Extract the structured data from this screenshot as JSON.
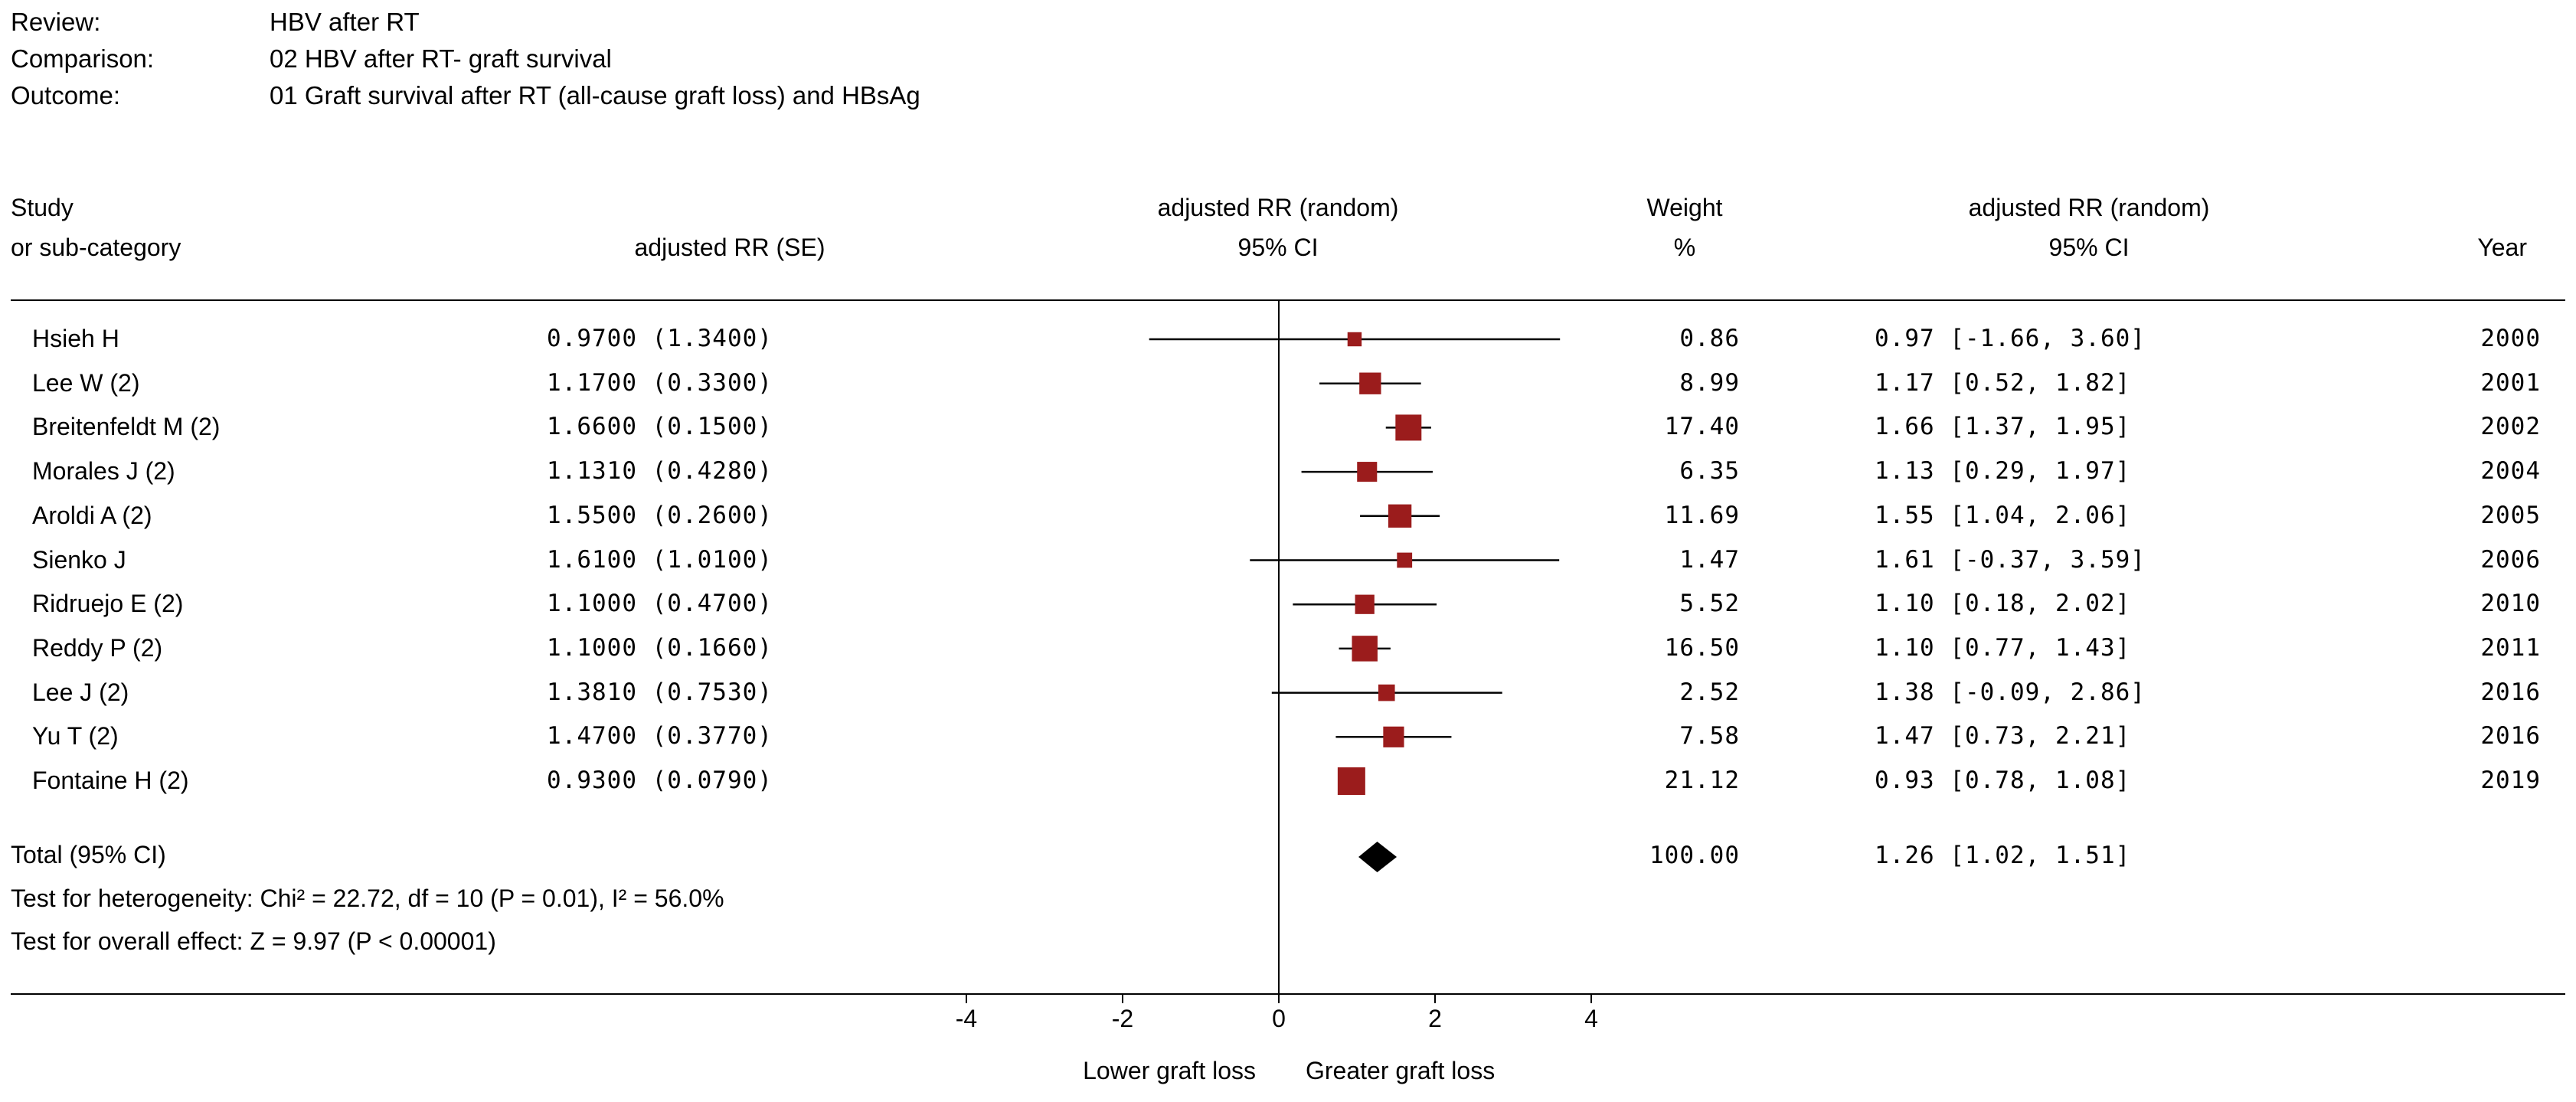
{
  "header": {
    "review_label": "Review:",
    "review_value": "HBV after RT",
    "comparison_label": "Comparison:",
    "comparison_value": "02 HBV after RT- graft survival",
    "outcome_label": "Outcome:",
    "outcome_value": "01 Graft survival after RT (all-cause graft loss) and HBsAg"
  },
  "columns": {
    "study_l1": "Study",
    "study_l2": "or sub-category",
    "rrse": "adjusted RR (SE)",
    "plot_l1": "adjusted RR (random)",
    "plot_l2": "95% CI",
    "weight_l1": "Weight",
    "weight_l2": "%",
    "ci_l1": "adjusted RR (random)",
    "ci_l2": "95% CI",
    "year": "Year"
  },
  "rows": [
    {
      "study": "Hsieh H",
      "rrse": "0.9700 (1.3400)",
      "weight": "0.86",
      "ci": "0.97 [-1.66, 3.60]",
      "year": "2000"
    },
    {
      "study": "Lee W (2)",
      "rrse": "1.1700 (0.3300)",
      "weight": "8.99",
      "ci": "1.17 [0.52, 1.82]",
      "year": "2001"
    },
    {
      "study": "Breitenfeldt M (2)",
      "rrse": "1.6600 (0.1500)",
      "weight": "17.40",
      "ci": "1.66 [1.37, 1.95]",
      "year": "2002"
    },
    {
      "study": "Morales J (2)",
      "rrse": "1.1310 (0.4280)",
      "weight": "6.35",
      "ci": "1.13 [0.29, 1.97]",
      "year": "2004"
    },
    {
      "study": "Aroldi A (2)",
      "rrse": "1.5500 (0.2600)",
      "weight": "11.69",
      "ci": "1.55 [1.04, 2.06]",
      "year": "2005"
    },
    {
      "study": "Sienko J",
      "rrse": "1.6100 (1.0100)",
      "weight": "1.47",
      "ci": "1.61 [-0.37, 3.59]",
      "year": "2006"
    },
    {
      "study": "Ridruejo E (2)",
      "rrse": "1.1000 (0.4700)",
      "weight": "5.52",
      "ci": "1.10 [0.18, 2.02]",
      "year": "2010"
    },
    {
      "study": "Reddy P (2)",
      "rrse": "1.1000 (0.1660)",
      "weight": "16.50",
      "ci": "1.10 [0.77, 1.43]",
      "year": "2011"
    },
    {
      "study": "Lee J (2)",
      "rrse": "1.3810 (0.7530)",
      "weight": "2.52",
      "ci": "1.38 [-0.09, 2.86]",
      "year": "2016"
    },
    {
      "study": "Yu T (2)",
      "rrse": "1.4700 (0.3770)",
      "weight": "7.58",
      "ci": "1.47 [0.73, 2.21]",
      "year": "2016"
    },
    {
      "study": "Fontaine H (2)",
      "rrse": "0.9300 (0.0790)",
      "weight": "21.12",
      "ci": "0.93 [0.78, 1.08]",
      "year": "2019"
    }
  ],
  "total": {
    "label": "Total (95% CI)",
    "weight": "100.00",
    "ci": "1.26 [1.02, 1.51]",
    "heterogeneity": "Test for heterogeneity: Chi² = 22.72, df = 10 (P = 0.01), I² = 56.0%",
    "overall": "Test for overall effect: Z = 9.97 (P < 0.00001)"
  },
  "footer": {
    "left_label": "Lower graft loss",
    "right_label": "Greater graft loss"
  },
  "colors": {
    "marker": "#9b1c1c",
    "diamond": "#000000",
    "line": "#000000"
  },
  "chart_data": {
    "type": "forest",
    "title": "adjusted RR (random) 95% CI",
    "xlabel_left": "Lower graft loss",
    "xlabel_right": "Greater graft loss",
    "xlim": [
      -4,
      4
    ],
    "xticks": [
      "-4",
      "-2",
      "0",
      "2",
      "4"
    ],
    "xtick_values": [
      -4,
      -2,
      0,
      2,
      4
    ],
    "studies": [
      {
        "name": "Hsieh H",
        "estimate": 0.97,
        "lower": -1.66,
        "upper": 3.6,
        "weight": 0.86
      },
      {
        "name": "Lee W (2)",
        "estimate": 1.17,
        "lower": 0.52,
        "upper": 1.82,
        "weight": 8.99
      },
      {
        "name": "Breitenfeldt M (2)",
        "estimate": 1.66,
        "lower": 1.37,
        "upper": 1.95,
        "weight": 17.4
      },
      {
        "name": "Morales J (2)",
        "estimate": 1.13,
        "lower": 0.29,
        "upper": 1.97,
        "weight": 6.35
      },
      {
        "name": "Aroldi A (2)",
        "estimate": 1.55,
        "lower": 1.04,
        "upper": 2.06,
        "weight": 11.69
      },
      {
        "name": "Sienko J",
        "estimate": 1.61,
        "lower": -0.37,
        "upper": 3.59,
        "weight": 1.47
      },
      {
        "name": "Ridruejo E (2)",
        "estimate": 1.1,
        "lower": 0.18,
        "upper": 2.02,
        "weight": 5.52
      },
      {
        "name": "Reddy P (2)",
        "estimate": 1.1,
        "lower": 0.77,
        "upper": 1.43,
        "weight": 16.5
      },
      {
        "name": "Lee J (2)",
        "estimate": 1.38,
        "lower": -0.09,
        "upper": 2.86,
        "weight": 2.52
      },
      {
        "name": "Yu T (2)",
        "estimate": 1.47,
        "lower": 0.73,
        "upper": 2.21,
        "weight": 7.58
      },
      {
        "name": "Fontaine H (2)",
        "estimate": 0.93,
        "lower": 0.78,
        "upper": 1.08,
        "weight": 21.12
      }
    ],
    "pooled": {
      "estimate": 1.26,
      "lower": 1.02,
      "upper": 1.51,
      "weight": 100.0
    },
    "null_value": 0
  }
}
